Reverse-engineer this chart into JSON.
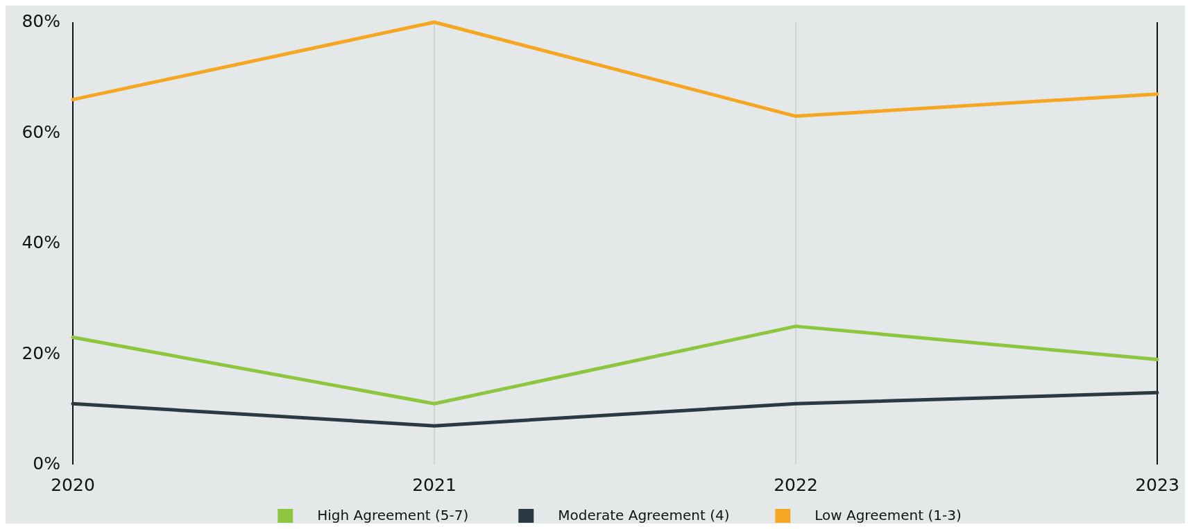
{
  "chart_data": {
    "type": "line",
    "x": [
      2020,
      2021,
      2022,
      2023
    ],
    "xlim": [
      2020,
      2023
    ],
    "xticks": [
      2020,
      2021,
      2022,
      2023
    ],
    "ylim": [
      0,
      80
    ],
    "yticks": [
      {
        "value": 0,
        "label": "0%"
      },
      {
        "value": 20,
        "label": "20%"
      },
      {
        "value": 40,
        "label": "40%"
      },
      {
        "value": 60,
        "label": "60%"
      },
      {
        "value": 80,
        "label": "80%"
      }
    ],
    "grid": "x",
    "legend": "bottom",
    "marker": "none",
    "line_style": "solid",
    "series": [
      {
        "name": "High Agreement (5-7)",
        "color": "#8cc63f",
        "values": [
          23,
          11,
          25,
          19
        ]
      },
      {
        "name": "Moderate Agreement (4)",
        "color": "#2b3a42",
        "values": [
          11,
          7,
          11,
          13
        ]
      },
      {
        "name": "Low Agreement (1-3)",
        "color": "#f5a623",
        "values": [
          66,
          80,
          63,
          67
        ]
      }
    ]
  }
}
